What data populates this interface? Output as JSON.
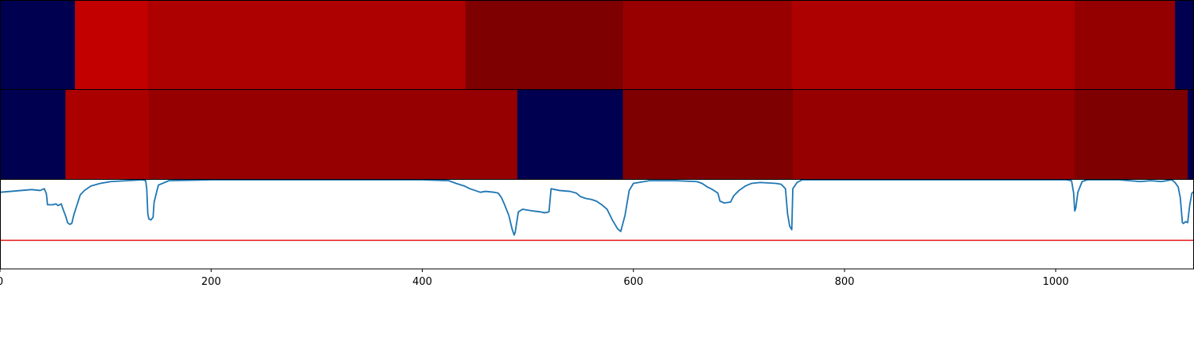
{
  "chart_data": {
    "type": "heatmap",
    "xlim": [
      0,
      1131
    ],
    "xticks": [
      0,
      200,
      400,
      600,
      800,
      1000
    ],
    "xtick_labels": [
      "0",
      "200",
      "400",
      "600",
      "800",
      "1000"
    ],
    "colors": {
      "low": "#000050",
      "line": "#1f77b4",
      "threshold": "#e41a1c",
      "frame": "#000000"
    },
    "tracks": [
      {
        "segments": [
          {
            "start": 0,
            "end": 71,
            "color": "#000050"
          },
          {
            "start": 71,
            "end": 140,
            "color": "#c30000"
          },
          {
            "start": 140,
            "end": 441,
            "color": "#ad0000"
          },
          {
            "start": 441,
            "end": 590,
            "color": "#7e0000"
          },
          {
            "start": 590,
            "end": 750,
            "color": "#980000"
          },
          {
            "start": 750,
            "end": 1018,
            "color": "#ad0000"
          },
          {
            "start": 1018,
            "end": 1113,
            "color": "#940000"
          },
          {
            "start": 1113,
            "end": 1131,
            "color": "#000050"
          }
        ]
      },
      {
        "segments": [
          {
            "start": 0,
            "end": 62,
            "color": "#000050"
          },
          {
            "start": 62,
            "end": 141,
            "color": "#ab0000"
          },
          {
            "start": 141,
            "end": 490,
            "color": "#960000"
          },
          {
            "start": 490,
            "end": 590,
            "color": "#000050"
          },
          {
            "start": 590,
            "end": 751,
            "color": "#7e0000"
          },
          {
            "start": 751,
            "end": 1018,
            "color": "#960000"
          },
          {
            "start": 1018,
            "end": 1125,
            "color": "#7e0000"
          },
          {
            "start": 1125,
            "end": 1131,
            "color": "#000050"
          }
        ]
      }
    ],
    "signal": {
      "ylim": [
        0,
        1
      ],
      "threshold": 0.32,
      "points": [
        [
          0,
          0.86
        ],
        [
          10,
          0.87
        ],
        [
          20,
          0.88
        ],
        [
          30,
          0.89
        ],
        [
          38,
          0.88
        ],
        [
          42,
          0.9
        ],
        [
          44,
          0.84
        ],
        [
          45,
          0.72
        ],
        [
          50,
          0.72
        ],
        [
          53,
          0.73
        ],
        [
          55,
          0.71
        ],
        [
          58,
          0.73
        ],
        [
          60,
          0.66
        ],
        [
          62,
          0.6
        ],
        [
          64,
          0.52
        ],
        [
          66,
          0.5
        ],
        [
          68,
          0.51
        ],
        [
          70,
          0.61
        ],
        [
          73,
          0.72
        ],
        [
          76,
          0.83
        ],
        [
          80,
          0.88
        ],
        [
          86,
          0.93
        ],
        [
          95,
          0.96
        ],
        [
          105,
          0.98
        ],
        [
          120,
          0.99
        ],
        [
          135,
          1.0
        ],
        [
          138,
          0.99
        ],
        [
          139,
          0.9
        ],
        [
          140,
          0.62
        ],
        [
          141,
          0.56
        ],
        [
          143,
          0.55
        ],
        [
          145,
          0.58
        ],
        [
          146,
          0.75
        ],
        [
          150,
          0.94
        ],
        [
          160,
          0.99
        ],
        [
          200,
          1.0
        ],
        [
          300,
          1.0
        ],
        [
          400,
          1.0
        ],
        [
          425,
          0.99
        ],
        [
          432,
          0.96
        ],
        [
          440,
          0.93
        ],
        [
          445,
          0.9
        ],
        [
          450,
          0.88
        ],
        [
          455,
          0.86
        ],
        [
          460,
          0.87
        ],
        [
          468,
          0.86
        ],
        [
          472,
          0.85
        ],
        [
          475,
          0.8
        ],
        [
          478,
          0.72
        ],
        [
          482,
          0.6
        ],
        [
          485,
          0.45
        ],
        [
          487,
          0.38
        ],
        [
          488,
          0.41
        ],
        [
          491,
          0.64
        ],
        [
          495,
          0.67
        ],
        [
          505,
          0.65
        ],
        [
          512,
          0.64
        ],
        [
          516,
          0.63
        ],
        [
          520,
          0.64
        ],
        [
          522,
          0.9
        ],
        [
          530,
          0.88
        ],
        [
          540,
          0.87
        ],
        [
          546,
          0.85
        ],
        [
          550,
          0.81
        ],
        [
          555,
          0.79
        ],
        [
          560,
          0.78
        ],
        [
          565,
          0.76
        ],
        [
          570,
          0.72
        ],
        [
          575,
          0.67
        ],
        [
          580,
          0.55
        ],
        [
          585,
          0.45
        ],
        [
          588,
          0.42
        ],
        [
          592,
          0.6
        ],
        [
          596,
          0.88
        ],
        [
          600,
          0.96
        ],
        [
          615,
          0.99
        ],
        [
          640,
          0.99
        ],
        [
          660,
          0.98
        ],
        [
          665,
          0.96
        ],
        [
          670,
          0.92
        ],
        [
          675,
          0.89
        ],
        [
          680,
          0.85
        ],
        [
          682,
          0.76
        ],
        [
          686,
          0.74
        ],
        [
          692,
          0.75
        ],
        [
          695,
          0.82
        ],
        [
          700,
          0.88
        ],
        [
          706,
          0.93
        ],
        [
          712,
          0.96
        ],
        [
          720,
          0.97
        ],
        [
          735,
          0.96
        ],
        [
          740,
          0.95
        ],
        [
          744,
          0.9
        ],
        [
          746,
          0.62
        ],
        [
          748,
          0.48
        ],
        [
          750,
          0.44
        ],
        [
          751,
          0.9
        ],
        [
          755,
          0.97
        ],
        [
          760,
          1.0
        ],
        [
          800,
          1.0
        ],
        [
          900,
          1.0
        ],
        [
          1010,
          1.0
        ],
        [
          1015,
          0.99
        ],
        [
          1017,
          0.85
        ],
        [
          1018,
          0.65
        ],
        [
          1019,
          0.68
        ],
        [
          1021,
          0.86
        ],
        [
          1025,
          0.98
        ],
        [
          1030,
          1.0
        ],
        [
          1060,
          1.0
        ],
        [
          1070,
          0.99
        ],
        [
          1080,
          0.98
        ],
        [
          1090,
          0.99
        ],
        [
          1100,
          0.98
        ],
        [
          1110,
          1.0
        ],
        [
          1113,
          0.97
        ],
        [
          1116,
          0.92
        ],
        [
          1118,
          0.8
        ],
        [
          1120,
          0.52
        ],
        [
          1121,
          0.51
        ],
        [
          1123,
          0.53
        ],
        [
          1125,
          0.52
        ],
        [
          1127,
          0.72
        ],
        [
          1129,
          0.85
        ],
        [
          1131,
          0.87
        ]
      ]
    }
  }
}
